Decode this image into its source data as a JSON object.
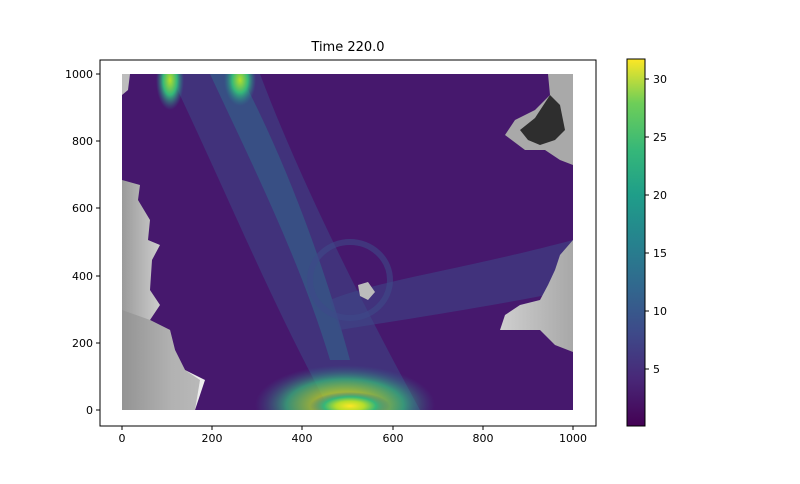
{
  "chart_data": {
    "type": "heatmap",
    "title": "Time 220.0",
    "xlabel": "",
    "ylabel": "",
    "xlim": [
      -50,
      1050
    ],
    "ylim": [
      -50,
      1020
    ],
    "x_ticks": [
      0,
      200,
      400,
      600,
      800,
      1000
    ],
    "y_ticks": [
      0,
      200,
      400,
      600,
      800,
      1000
    ],
    "colorbar": {
      "colormap": "viridis",
      "range": [
        0.1,
        31.8
      ],
      "ticks": [
        5,
        10,
        15,
        20,
        25,
        30
      ]
    },
    "land_mask_colormap": "gray",
    "features": [
      {
        "name": "southern-bright-jet",
        "x": 510,
        "y": 10,
        "value": 31
      },
      {
        "name": "north-jet-left",
        "x": 100,
        "y": 990,
        "value": 20
      },
      {
        "name": "north-jet-right",
        "x": 250,
        "y": 990,
        "value": 18
      }
    ]
  },
  "colors": {
    "viridis_low": "#440154",
    "viridis_mid": "#21918c",
    "viridis_high": "#fde725",
    "land_light": "#d9d9d9",
    "land_dark": "#262626"
  }
}
